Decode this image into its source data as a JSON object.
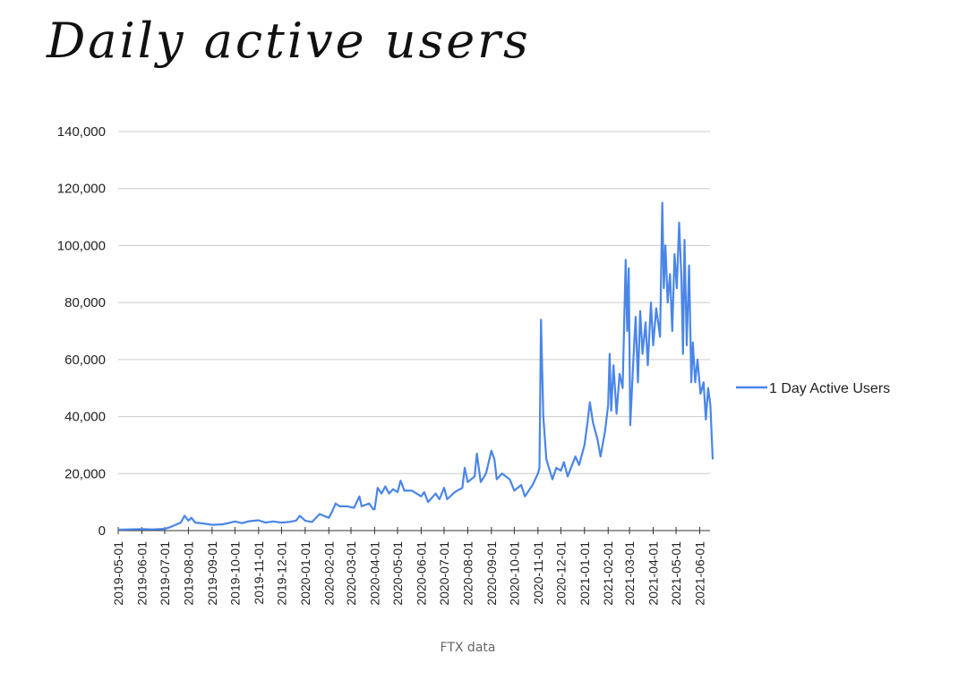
{
  "chart_data": {
    "type": "line",
    "title": "Daily active users",
    "caption": "FTX data",
    "xlabel": "",
    "ylabel": "",
    "ylim": [
      0,
      140000
    ],
    "yticks": [
      0,
      20000,
      40000,
      60000,
      80000,
      100000,
      120000,
      140000
    ],
    "ytick_labels": [
      "0",
      "20,000",
      "40,000",
      "60,000",
      "80,000",
      "100,000",
      "120,000",
      "140,000"
    ],
    "xticks": [
      "2019-05-01",
      "2019-06-01",
      "2019-07-01",
      "2019-08-01",
      "2019-09-01",
      "2019-10-01",
      "2019-11-01",
      "2019-12-01",
      "2020-01-01",
      "2020-02-01",
      "2020-03-01",
      "2020-04-01",
      "2020-05-01",
      "2020-06-01",
      "2020-07-01",
      "2020-08-01",
      "2020-09-01",
      "2020-10-01",
      "2020-11-01",
      "2020-12-01",
      "2021-01-01",
      "2021-02-01",
      "2021-03-01",
      "2021-04-01",
      "2021-05-01",
      "2021-06-01"
    ],
    "xlim": [
      "2019-05-01",
      "2021-06-18"
    ],
    "grid": true,
    "legend_position": "right",
    "series_color": "#4a86e8",
    "series": [
      {
        "name": "1 Day Active Users",
        "points": [
          [
            "2019-05-01",
            300
          ],
          [
            "2019-05-15",
            400
          ],
          [
            "2019-06-01",
            500
          ],
          [
            "2019-06-15",
            400
          ],
          [
            "2019-07-01",
            600
          ],
          [
            "2019-07-08",
            1200
          ],
          [
            "2019-07-15",
            2000
          ],
          [
            "2019-07-22",
            2800
          ],
          [
            "2019-07-27",
            5200
          ],
          [
            "2019-08-01",
            3500
          ],
          [
            "2019-08-05",
            4500
          ],
          [
            "2019-08-10",
            2800
          ],
          [
            "2019-08-20",
            2500
          ],
          [
            "2019-09-01",
            2000
          ],
          [
            "2019-09-15",
            2200
          ],
          [
            "2019-09-25",
            2800
          ],
          [
            "2019-10-01",
            3200
          ],
          [
            "2019-10-10",
            2600
          ],
          [
            "2019-10-20",
            3300
          ],
          [
            "2019-11-01",
            3600
          ],
          [
            "2019-11-10",
            2800
          ],
          [
            "2019-11-20",
            3200
          ],
          [
            "2019-12-01",
            2800
          ],
          [
            "2019-12-10",
            3000
          ],
          [
            "2019-12-20",
            3500
          ],
          [
            "2019-12-25",
            5200
          ],
          [
            "2020-01-01",
            3500
          ],
          [
            "2020-01-10",
            3000
          ],
          [
            "2020-01-20",
            5800
          ],
          [
            "2020-01-25",
            5200
          ],
          [
            "2020-02-01",
            4500
          ],
          [
            "2020-02-05",
            6500
          ],
          [
            "2020-02-10",
            9500
          ],
          [
            "2020-02-15",
            8500
          ],
          [
            "2020-02-25",
            8500
          ],
          [
            "2020-03-05",
            8000
          ],
          [
            "2020-03-12",
            12000
          ],
          [
            "2020-03-15",
            8500
          ],
          [
            "2020-03-25",
            9500
          ],
          [
            "2020-03-30",
            7500
          ],
          [
            "2020-04-01",
            7500
          ],
          [
            "2020-04-05",
            15000
          ],
          [
            "2020-04-10",
            13000
          ],
          [
            "2020-04-15",
            15500
          ],
          [
            "2020-04-20",
            13000
          ],
          [
            "2020-04-25",
            14500
          ],
          [
            "2020-05-01",
            13500
          ],
          [
            "2020-05-05",
            17500
          ],
          [
            "2020-05-10",
            14000
          ],
          [
            "2020-05-20",
            14000
          ],
          [
            "2020-06-01",
            12000
          ],
          [
            "2020-06-05",
            13500
          ],
          [
            "2020-06-10",
            10000
          ],
          [
            "2020-06-20",
            13000
          ],
          [
            "2020-06-25",
            11000
          ],
          [
            "2020-07-01",
            15000
          ],
          [
            "2020-07-05",
            11000
          ],
          [
            "2020-07-15",
            13500
          ],
          [
            "2020-07-25",
            15000
          ],
          [
            "2020-07-28",
            22000
          ],
          [
            "2020-08-01",
            17000
          ],
          [
            "2020-08-10",
            19000
          ],
          [
            "2020-08-13",
            27000
          ],
          [
            "2020-08-18",
            17000
          ],
          [
            "2020-08-25",
            20000
          ],
          [
            "2020-09-01",
            28000
          ],
          [
            "2020-09-05",
            25000
          ],
          [
            "2020-09-08",
            18000
          ],
          [
            "2020-09-15",
            20000
          ],
          [
            "2020-09-25",
            18000
          ],
          [
            "2020-10-01",
            14000
          ],
          [
            "2020-10-10",
            16000
          ],
          [
            "2020-10-15",
            12000
          ],
          [
            "2020-10-25",
            16000
          ],
          [
            "2020-11-01",
            20000
          ],
          [
            "2020-11-03",
            22000
          ],
          [
            "2020-11-05",
            74000
          ],
          [
            "2020-11-08",
            40000
          ],
          [
            "2020-11-12",
            25000
          ],
          [
            "2020-11-20",
            18000
          ],
          [
            "2020-11-25",
            22000
          ],
          [
            "2020-12-01",
            21000
          ],
          [
            "2020-12-05",
            24000
          ],
          [
            "2020-12-10",
            19000
          ],
          [
            "2020-12-20",
            26000
          ],
          [
            "2020-12-25",
            23000
          ],
          [
            "2021-01-01",
            30000
          ],
          [
            "2021-01-05",
            38000
          ],
          [
            "2021-01-08",
            45000
          ],
          [
            "2021-01-12",
            38000
          ],
          [
            "2021-01-18",
            32000
          ],
          [
            "2021-01-22",
            26000
          ],
          [
            "2021-01-28",
            35000
          ],
          [
            "2021-02-01",
            44000
          ],
          [
            "2021-02-03",
            62000
          ],
          [
            "2021-02-05",
            42000
          ],
          [
            "2021-02-08",
            58000
          ],
          [
            "2021-02-12",
            41000
          ],
          [
            "2021-02-16",
            55000
          ],
          [
            "2021-02-20",
            50000
          ],
          [
            "2021-02-24",
            95000
          ],
          [
            "2021-02-26",
            70000
          ],
          [
            "2021-02-28",
            92000
          ],
          [
            "2021-03-02",
            37000
          ],
          [
            "2021-03-06",
            60000
          ],
          [
            "2021-03-09",
            75000
          ],
          [
            "2021-03-12",
            52000
          ],
          [
            "2021-03-15",
            77000
          ],
          [
            "2021-03-18",
            62000
          ],
          [
            "2021-03-22",
            73000
          ],
          [
            "2021-03-25",
            58000
          ],
          [
            "2021-03-29",
            80000
          ],
          [
            "2021-04-01",
            65000
          ],
          [
            "2021-04-05",
            78000
          ],
          [
            "2021-04-10",
            68000
          ],
          [
            "2021-04-13",
            115000
          ],
          [
            "2021-04-15",
            85000
          ],
          [
            "2021-04-17",
            100000
          ],
          [
            "2021-04-20",
            80000
          ],
          [
            "2021-04-23",
            90000
          ],
          [
            "2021-04-26",
            70000
          ],
          [
            "2021-04-29",
            97000
          ],
          [
            "2021-05-02",
            85000
          ],
          [
            "2021-05-05",
            108000
          ],
          [
            "2021-05-08",
            88000
          ],
          [
            "2021-05-10",
            62000
          ],
          [
            "2021-05-12",
            102000
          ],
          [
            "2021-05-15",
            65000
          ],
          [
            "2021-05-18",
            93000
          ],
          [
            "2021-05-21",
            52000
          ],
          [
            "2021-05-23",
            66000
          ],
          [
            "2021-05-26",
            52000
          ],
          [
            "2021-05-29",
            60000
          ],
          [
            "2021-06-02",
            48000
          ],
          [
            "2021-06-06",
            52000
          ],
          [
            "2021-06-09",
            39000
          ],
          [
            "2021-06-12",
            50000
          ],
          [
            "2021-06-15",
            44000
          ],
          [
            "2021-06-18",
            25000
          ]
        ]
      }
    ]
  }
}
